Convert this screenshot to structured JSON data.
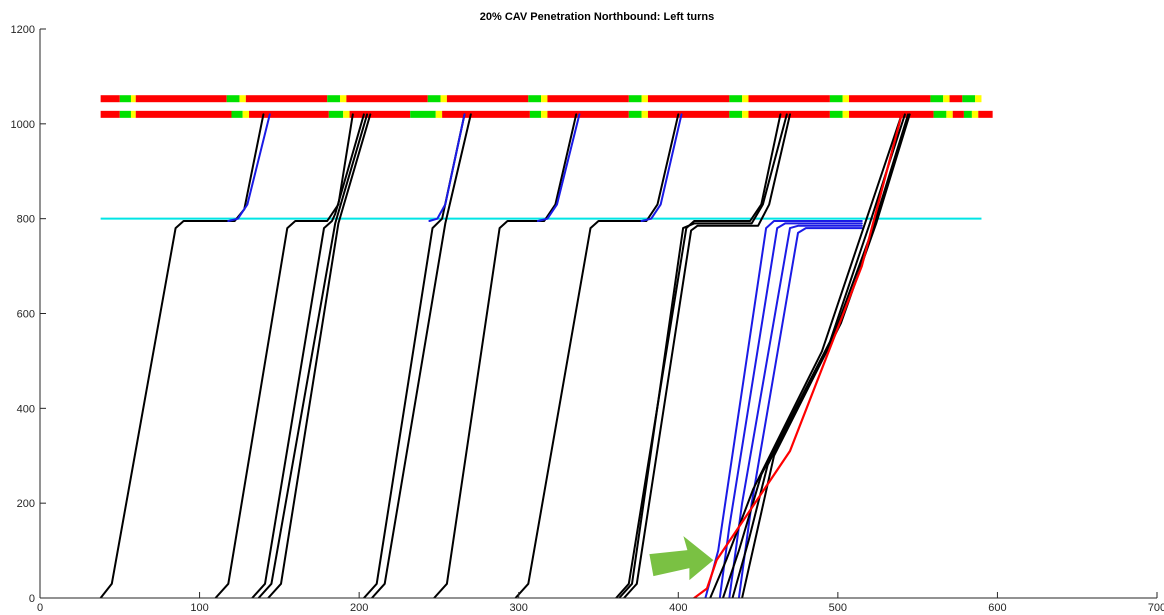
{
  "chart_data": {
    "type": "line",
    "title": "20% CAV Penetration Northbound: Left turns",
    "xlabel": "",
    "ylabel": "",
    "xlim": [
      0,
      700
    ],
    "ylim": [
      0,
      1200
    ],
    "xticks": [
      0,
      100,
      200,
      300,
      400,
      500,
      600,
      700
    ],
    "yticks": [
      0,
      200,
      400,
      600,
      800,
      1000,
      1200
    ],
    "grid": false,
    "legend": "none",
    "stop_line": {
      "y": 800,
      "x_range": [
        38,
        590
      ],
      "color": "#00e5e5"
    },
    "signal_bars": [
      {
        "y": 1053,
        "segments": [
          {
            "x0": 38,
            "x1": 50,
            "c": "red"
          },
          {
            "x0": 50,
            "x1": 57,
            "c": "green"
          },
          {
            "x0": 57,
            "x1": 60,
            "c": "yellow"
          },
          {
            "x0": 60,
            "x1": 117,
            "c": "red"
          },
          {
            "x0": 117,
            "x1": 125,
            "c": "green"
          },
          {
            "x0": 125,
            "x1": 129,
            "c": "yellow"
          },
          {
            "x0": 129,
            "x1": 180,
            "c": "red"
          },
          {
            "x0": 180,
            "x1": 188,
            "c": "green"
          },
          {
            "x0": 188,
            "x1": 192,
            "c": "yellow"
          },
          {
            "x0": 192,
            "x1": 243,
            "c": "red"
          },
          {
            "x0": 243,
            "x1": 251,
            "c": "green"
          },
          {
            "x0": 251,
            "x1": 255,
            "c": "yellow"
          },
          {
            "x0": 255,
            "x1": 306,
            "c": "red"
          },
          {
            "x0": 306,
            "x1": 314,
            "c": "green"
          },
          {
            "x0": 314,
            "x1": 318,
            "c": "yellow"
          },
          {
            "x0": 318,
            "x1": 369,
            "c": "red"
          },
          {
            "x0": 369,
            "x1": 377,
            "c": "green"
          },
          {
            "x0": 377,
            "x1": 381,
            "c": "yellow"
          },
          {
            "x0": 381,
            "x1": 432,
            "c": "red"
          },
          {
            "x0": 432,
            "x1": 440,
            "c": "green"
          },
          {
            "x0": 440,
            "x1": 444,
            "c": "yellow"
          },
          {
            "x0": 444,
            "x1": 495,
            "c": "red"
          },
          {
            "x0": 495,
            "x1": 503,
            "c": "green"
          },
          {
            "x0": 503,
            "x1": 507,
            "c": "yellow"
          },
          {
            "x0": 507,
            "x1": 558,
            "c": "red"
          },
          {
            "x0": 558,
            "x1": 566,
            "c": "green"
          },
          {
            "x0": 566,
            "x1": 570,
            "c": "yellow"
          },
          {
            "x0": 570,
            "x1": 578,
            "c": "red"
          },
          {
            "x0": 578,
            "x1": 586,
            "c": "green"
          },
          {
            "x0": 586,
            "x1": 590,
            "c": "yellow"
          }
        ]
      },
      {
        "y": 1020,
        "segments": [
          {
            "x0": 38,
            "x1": 50,
            "c": "red"
          },
          {
            "x0": 50,
            "x1": 57,
            "c": "green"
          },
          {
            "x0": 57,
            "x1": 60,
            "c": "yellow"
          },
          {
            "x0": 60,
            "x1": 120,
            "c": "red"
          },
          {
            "x0": 120,
            "x1": 127,
            "c": "green"
          },
          {
            "x0": 127,
            "x1": 131,
            "c": "yellow"
          },
          {
            "x0": 131,
            "x1": 181,
            "c": "red"
          },
          {
            "x0": 181,
            "x1": 190,
            "c": "green"
          },
          {
            "x0": 190,
            "x1": 194,
            "c": "yellow"
          },
          {
            "x0": 194,
            "x1": 232,
            "c": "red"
          },
          {
            "x0": 232,
            "x1": 248,
            "c": "green"
          },
          {
            "x0": 248,
            "x1": 252,
            "c": "yellow"
          },
          {
            "x0": 252,
            "x1": 307,
            "c": "red"
          },
          {
            "x0": 307,
            "x1": 314,
            "c": "green"
          },
          {
            "x0": 314,
            "x1": 318,
            "c": "yellow"
          },
          {
            "x0": 318,
            "x1": 369,
            "c": "red"
          },
          {
            "x0": 369,
            "x1": 377,
            "c": "green"
          },
          {
            "x0": 377,
            "x1": 381,
            "c": "yellow"
          },
          {
            "x0": 381,
            "x1": 432,
            "c": "red"
          },
          {
            "x0": 432,
            "x1": 440,
            "c": "green"
          },
          {
            "x0": 440,
            "x1": 444,
            "c": "yellow"
          },
          {
            "x0": 444,
            "x1": 495,
            "c": "red"
          },
          {
            "x0": 495,
            "x1": 503,
            "c": "green"
          },
          {
            "x0": 503,
            "x1": 507,
            "c": "yellow"
          },
          {
            "x0": 507,
            "x1": 560,
            "c": "red"
          },
          {
            "x0": 560,
            "x1": 568,
            "c": "green"
          },
          {
            "x0": 568,
            "x1": 572,
            "c": "yellow"
          },
          {
            "x0": 572,
            "x1": 579,
            "c": "red"
          },
          {
            "x0": 579,
            "x1": 584,
            "c": "green"
          },
          {
            "x0": 584,
            "x1": 588,
            "c": "yellow"
          },
          {
            "x0": 588,
            "x1": 597,
            "c": "red"
          }
        ]
      }
    ],
    "series": [
      {
        "color": "black",
        "points": [
          [
            38,
            0
          ],
          [
            45,
            30
          ],
          [
            85,
            780
          ],
          [
            90,
            795
          ],
          [
            122,
            795
          ],
          [
            128,
            820
          ],
          [
            140,
            1020
          ]
        ]
      },
      {
        "color": "blue",
        "points": [
          [
            118,
            795
          ],
          [
            124,
            800
          ],
          [
            130,
            830
          ],
          [
            144,
            1020
          ]
        ]
      },
      {
        "color": "black",
        "points": [
          [
            110,
            0
          ],
          [
            118,
            30
          ],
          [
            155,
            780
          ],
          [
            160,
            795
          ],
          [
            180,
            795
          ],
          [
            187,
            830
          ],
          [
            196,
            1020
          ]
        ]
      },
      {
        "color": "black",
        "points": [
          [
            133,
            0
          ],
          [
            141,
            30
          ],
          [
            178,
            780
          ],
          [
            183,
            795
          ],
          [
            185,
            810
          ],
          [
            203,
            1020
          ]
        ]
      },
      {
        "color": "black",
        "points": [
          [
            137,
            0
          ],
          [
            145,
            30
          ],
          [
            185,
            790
          ],
          [
            205,
            1020
          ]
        ]
      },
      {
        "color": "black",
        "points": [
          [
            143,
            0
          ],
          [
            151,
            30
          ],
          [
            187,
            790
          ],
          [
            207,
            1020
          ]
        ]
      },
      {
        "color": "black",
        "points": [
          [
            203,
            0
          ],
          [
            211,
            30
          ],
          [
            246,
            780
          ],
          [
            252,
            800
          ],
          [
            266,
            1020
          ]
        ]
      },
      {
        "color": "black",
        "points": [
          [
            208,
            0
          ],
          [
            216,
            30
          ],
          [
            254,
            790
          ],
          [
            270,
            1020
          ]
        ]
      },
      {
        "color": "blue",
        "points": [
          [
            244,
            795
          ],
          [
            249,
            800
          ],
          [
            254,
            830
          ],
          [
            266,
            1020
          ]
        ]
      },
      {
        "color": "black",
        "points": [
          [
            247,
            0
          ],
          [
            255,
            30
          ],
          [
            288,
            780
          ],
          [
            293,
            795
          ],
          [
            316,
            795
          ],
          [
            323,
            830
          ],
          [
            336,
            1020
          ]
        ]
      },
      {
        "color": "blue",
        "points": [
          [
            312,
            795
          ],
          [
            318,
            800
          ],
          [
            324,
            830
          ],
          [
            338,
            1020
          ]
        ]
      },
      {
        "color": "black",
        "points": [
          [
            298,
            0
          ],
          [
            306,
            30
          ],
          [
            345,
            780
          ],
          [
            350,
            795
          ],
          [
            380,
            795
          ],
          [
            387,
            830
          ],
          [
            400,
            1020
          ]
        ]
      },
      {
        "color": "blue",
        "points": [
          [
            377,
            795
          ],
          [
            383,
            800
          ],
          [
            389,
            830
          ],
          [
            402,
            1020
          ]
        ]
      },
      {
        "color": "black",
        "points": [
          [
            361,
            0
          ],
          [
            369,
            30
          ],
          [
            405,
            780
          ],
          [
            410,
            795
          ],
          [
            445,
            795
          ],
          [
            452,
            830
          ],
          [
            464,
            1020
          ]
        ]
      },
      {
        "color": "black",
        "points": [
          [
            363,
            0
          ],
          [
            371,
            30
          ],
          [
            403,
            780
          ],
          [
            410,
            790
          ],
          [
            446,
            790
          ],
          [
            453,
            830
          ],
          [
            468,
            1020
          ]
        ]
      },
      {
        "color": "black",
        "points": [
          [
            366,
            0
          ],
          [
            374,
            30
          ],
          [
            408,
            775
          ],
          [
            412,
            785
          ],
          [
            450,
            785
          ],
          [
            457,
            830
          ],
          [
            470,
            1020
          ]
        ]
      },
      {
        "color": "blue",
        "points": [
          [
            417,
            0
          ],
          [
            425,
            100
          ],
          [
            455,
            780
          ],
          [
            460,
            795
          ],
          [
            515,
            795
          ]
        ]
      },
      {
        "color": "blue",
        "points": [
          [
            426,
            0
          ],
          [
            432,
            150
          ],
          [
            462,
            780
          ],
          [
            467,
            790
          ],
          [
            515,
            790
          ]
        ]
      },
      {
        "color": "blue",
        "points": [
          [
            432,
            0
          ],
          [
            440,
            200
          ],
          [
            470,
            780
          ],
          [
            475,
            785
          ],
          [
            515,
            785
          ]
        ]
      },
      {
        "color": "blue",
        "points": [
          [
            438,
            0
          ],
          [
            446,
            200
          ],
          [
            475,
            770
          ],
          [
            480,
            780
          ],
          [
            515,
            780
          ]
        ]
      },
      {
        "color": "black",
        "points": [
          [
            420,
            0
          ],
          [
            430,
            80
          ],
          [
            447,
            230
          ],
          [
            490,
            520
          ],
          [
            518,
            800
          ],
          [
            540,
            1020
          ]
        ]
      },
      {
        "color": "black",
        "points": [
          [
            428,
            0
          ],
          [
            438,
            100
          ],
          [
            452,
            260
          ],
          [
            495,
            540
          ],
          [
            520,
            790
          ],
          [
            542,
            1020
          ]
        ]
      },
      {
        "color": "black",
        "points": [
          [
            434,
            0
          ],
          [
            444,
            120
          ],
          [
            456,
            280
          ],
          [
            498,
            560
          ],
          [
            522,
            780
          ],
          [
            544,
            1020
          ]
        ]
      },
      {
        "color": "black",
        "points": [
          [
            440,
            0
          ],
          [
            450,
            150
          ],
          [
            460,
            300
          ],
          [
            502,
            580
          ],
          [
            524,
            790
          ],
          [
            545,
            1020
          ]
        ]
      },
      {
        "color": "red",
        "points": [
          [
            410,
            0
          ],
          [
            418,
            20
          ],
          [
            424,
            80
          ],
          [
            470,
            310
          ],
          [
            515,
            700
          ],
          [
            540,
            1020
          ]
        ]
      }
    ],
    "annotation_arrow": {
      "tip": [
        422,
        80
      ],
      "direction": "right",
      "color": "#7ac143"
    }
  }
}
